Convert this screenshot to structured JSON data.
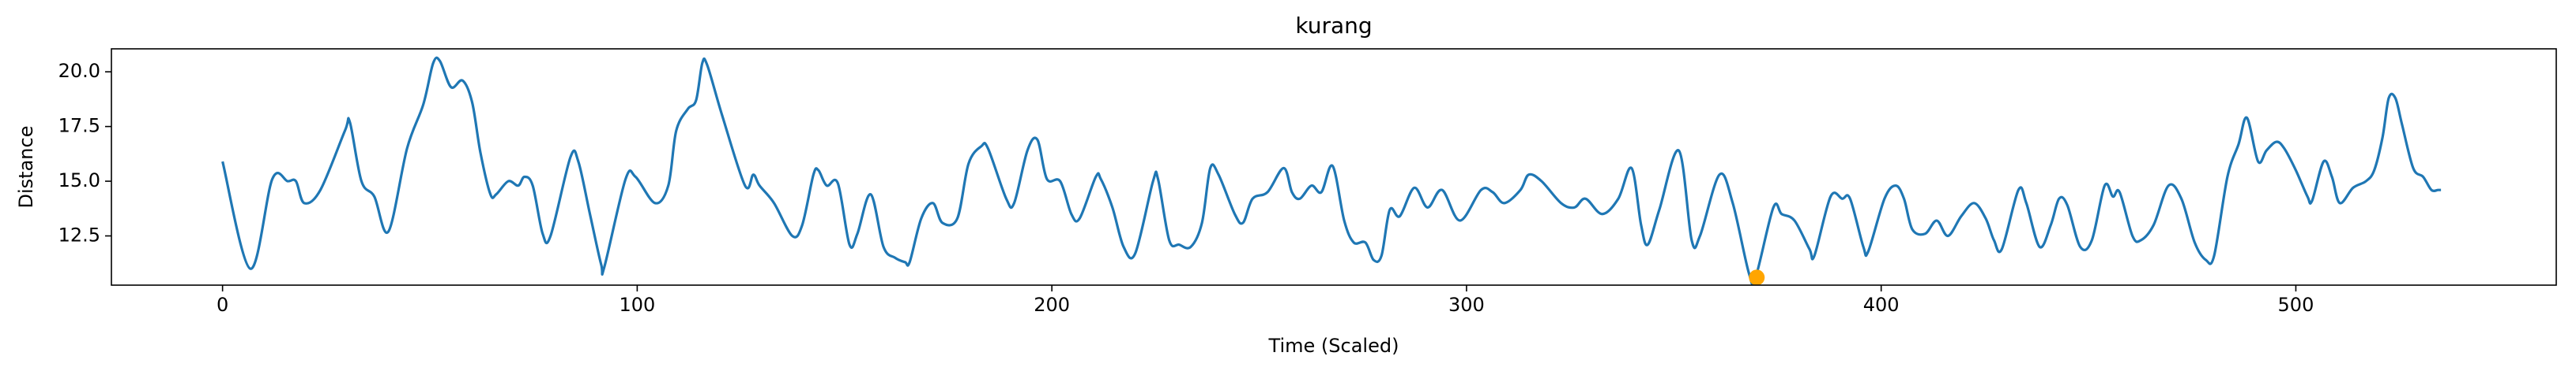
{
  "chart_data": {
    "type": "line",
    "title": "kurang",
    "x_label": "Time (Scaled)",
    "y_label": "Distance",
    "xlim": [
      -26.8,
      562.8
    ],
    "ylim": [
      10.25,
      21.05
    ],
    "xticks": [
      0,
      100,
      200,
      300,
      400,
      500
    ],
    "yticks": [
      12.5,
      {
        "value": 15,
        "label": "15.0"
      },
      17.5,
      {
        "value": 20,
        "label": "20.0"
      }
    ],
    "series": [
      {
        "type": "line",
        "color": "#1f77b4",
        "x": [
          0,
          6.7,
          12,
          15.7,
          17.7,
          19.7,
          23.6,
          29.5,
          30.7,
          33.5,
          36.6,
          40,
          44.5,
          48.4,
          50.8,
          52.4,
          55.1,
          57.9,
          60.2,
          62.2,
          64.6,
          66,
          68.9,
          71.3,
          72.8,
          74.8,
          77.2,
          79.1,
          83.9,
          85.8,
          88.6,
          91.3,
          92.1,
          97.2,
          99.6,
          104.3,
          107.5,
          109.4,
          112.2,
          114.2,
          115.7,
          116.9,
          120.5,
          126,
          128,
          129.5,
          133,
          137.4,
          139.8,
          142.5,
          143.7,
          145.7,
          148.4,
          151.2,
          153.1,
          156.3,
          159.4,
          162.2,
          164.6,
          165.7,
          168.5,
          171.3,
          173.6,
          177.2,
          179.9,
          183,
          184.6,
          189,
          190.9,
          194.1,
          196.5,
          198.8,
          202,
          204.7,
          206.7,
          210.6,
          211.8,
          214.6,
          217.3,
          220.1,
          224.4,
          225.6,
          228.3,
          230.7,
          233.5,
          236.2,
          238.2,
          240.2,
          244.1,
          246.1,
          248.4,
          252,
          255.9,
          257.9,
          259.8,
          262.6,
          265,
          267.7,
          270.5,
          272.8,
          275.6,
          277.6,
          279.5,
          281.5,
          283.9,
          287.4,
          290.6,
          294.1,
          298.4,
          303.5,
          306.3,
          309.1,
          313,
          315,
          318.1,
          322.8,
          326,
          328.7,
          332.7,
          336.6,
          339.8,
          342.1,
          343.7,
          346.5,
          351.2,
          354.3,
          356.3,
          361,
          364.2,
          368.1,
          369.7,
          374,
          376,
          379.1,
          382.7,
          383.9,
          387.8,
          390.6,
          392.5,
          395.7,
          396.9,
          400.8,
          403.5,
          405.5,
          407.5,
          410.6,
          413.4,
          416.1,
          419.3,
          422.4,
          425.2,
          427.2,
          429.1,
          433.1,
          435,
          438.2,
          440.9,
          442.9,
          444.9,
          448,
          450.8,
          453.9,
          455.9,
          457.5,
          460.6,
          462.6,
          465.7,
          469.3,
          472.4,
          475.6,
          478.3,
          480.3,
          483.5,
          486.2,
          488.2,
          490.9,
          492.9,
          495.3,
          497.2,
          500,
          502.8,
          503.9,
          506.7,
          508.7,
          510.6,
          513.8,
          516.9,
          518.9,
          520.9,
          522.4,
          524,
          525.6,
          528.3,
          530.7,
          532.7,
          534.3,
          535
        ],
        "values": [
          15.9,
          11.0,
          15.1,
          15.0,
          15.0,
          14.0,
          14.6,
          17.3,
          17.7,
          15.0,
          14.3,
          12.7,
          16.5,
          18.5,
          20.4,
          20.5,
          19.3,
          19.6,
          18.6,
          16.3,
          14.4,
          14.4,
          15.0,
          14.8,
          15.2,
          14.8,
          12.6,
          12.5,
          16.1,
          15.9,
          13.5,
          11.2,
          11.1,
          15.1,
          15.2,
          14.0,
          14.8,
          17.3,
          18.3,
          18.7,
          20.4,
          20.3,
          18.0,
          14.8,
          15.3,
          14.8,
          14.0,
          12.5,
          13.0,
          15.3,
          15.5,
          14.8,
          14.9,
          12.1,
          12.6,
          14.4,
          12.0,
          11.5,
          11.3,
          11.3,
          13.3,
          14.0,
          13.1,
          13.3,
          15.8,
          16.6,
          16.5,
          14.2,
          14.0,
          16.4,
          16.9,
          15.1,
          15.0,
          13.5,
          13.3,
          15.2,
          15.1,
          13.8,
          12.0,
          11.7,
          15.0,
          15.1,
          12.3,
          12.1,
          12.0,
          13.1,
          15.6,
          15.3,
          13.5,
          13.1,
          14.2,
          14.5,
          15.6,
          14.5,
          14.2,
          14.8,
          14.5,
          15.7,
          13.2,
          12.2,
          12.2,
          11.4,
          11.6,
          13.7,
          13.4,
          14.7,
          13.8,
          14.6,
          13.2,
          14.6,
          14.5,
          14.0,
          14.6,
          15.3,
          15.0,
          14.0,
          13.8,
          14.2,
          13.5,
          14.2,
          15.6,
          13.0,
          12.1,
          13.7,
          16.4,
          12.3,
          12.5,
          15.3,
          14.0,
          10.8,
          10.6,
          13.8,
          13.5,
          13.2,
          11.9,
          11.6,
          14.3,
          14.2,
          14.2,
          12.0,
          11.8,
          14.2,
          14.8,
          14.2,
          12.8,
          12.6,
          13.2,
          12.5,
          13.4,
          14.0,
          13.3,
          12.3,
          11.9,
          14.6,
          14.0,
          12.0,
          13.0,
          14.2,
          13.9,
          12.0,
          12.3,
          14.8,
          14.3,
          14.5,
          12.5,
          12.3,
          13.0,
          14.8,
          14.2,
          12.2,
          11.4,
          11.6,
          15.2,
          16.7,
          17.9,
          15.9,
          16.4,
          16.8,
          16.5,
          15.5,
          14.3,
          14.1,
          15.9,
          15.2,
          14.0,
          14.7,
          15.0,
          15.5,
          17.0,
          18.8,
          18.8,
          17.6,
          15.6,
          15.2,
          14.6,
          14.6,
          14.6
        ]
      },
      {
        "type": "scatter",
        "color": "#ffa500",
        "x": [
          370
        ],
        "values": [
          10.6
        ]
      }
    ]
  }
}
